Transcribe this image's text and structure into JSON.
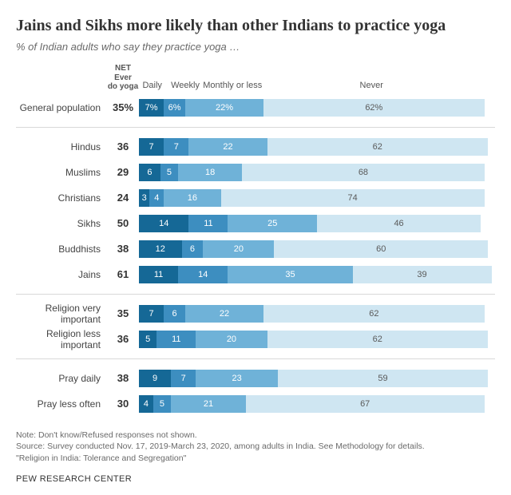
{
  "title": "Jains and Sikhs more likely than other Indians to practice yoga",
  "subtitle": "% of Indian adults who say they practice yoga …",
  "net_header_line1": "NET Ever",
  "net_header_line2": "do yoga",
  "segment_labels": [
    "Daily",
    "Weekly",
    "Monthly or less",
    "Never"
  ],
  "first_row_pct_suffix": "%",
  "colors": {
    "daily": "#156896",
    "weekly": "#3d8ec0",
    "monthly": "#6fb2d8",
    "never": "#cfe6f2",
    "background": "#ffffff",
    "grid": "#d9d9d9",
    "text_dark": "#333333",
    "text_light_on_bar": "#5a5a5a"
  },
  "label_positions_pct": {
    "daily": 1,
    "weekly": 9,
    "monthly": 18,
    "never": 62
  },
  "bar_full_width_pct": 100,
  "groups": [
    {
      "rows": [
        {
          "label": "General population",
          "net": "35",
          "daily": 7,
          "weekly": 6,
          "monthly": 22,
          "never": 62,
          "show_pct": true
        }
      ]
    },
    {
      "rows": [
        {
          "label": "Hindus",
          "net": "36",
          "daily": 7,
          "weekly": 7,
          "monthly": 22,
          "never": 62
        },
        {
          "label": "Muslims",
          "net": "29",
          "daily": 6,
          "weekly": 5,
          "monthly": 18,
          "never": 68
        },
        {
          "label": "Christians",
          "net": "24",
          "daily": 3,
          "weekly": 4,
          "monthly": 16,
          "never": 74
        },
        {
          "label": "Sikhs",
          "net": "50",
          "daily": 14,
          "weekly": 11,
          "monthly": 25,
          "never": 46
        },
        {
          "label": "Buddhists",
          "net": "38",
          "daily": 12,
          "weekly": 6,
          "monthly": 20,
          "never": 60
        },
        {
          "label": "Jains",
          "net": "61",
          "daily": 11,
          "weekly": 14,
          "monthly": 35,
          "never": 39
        }
      ]
    },
    {
      "rows": [
        {
          "label": "Religion very important",
          "net": "35",
          "daily": 7,
          "weekly": 6,
          "monthly": 22,
          "never": 62
        },
        {
          "label": "Religion less important",
          "net": "36",
          "daily": 5,
          "weekly": 11,
          "monthly": 20,
          "never": 62
        }
      ]
    },
    {
      "rows": [
        {
          "label": "Pray daily",
          "net": "38",
          "daily": 9,
          "weekly": 7,
          "monthly": 23,
          "never": 59
        },
        {
          "label": "Pray less often",
          "net": "30",
          "daily": 4,
          "weekly": 5,
          "monthly": 21,
          "never": 67
        }
      ]
    }
  ],
  "note_line1": "Note: Don't know/Refused responses not shown.",
  "note_line2": "Source: Survey conducted Nov. 17, 2019-March 23, 2020, among adults in India. See Methodology for details.",
  "note_line3": "\"Religion in India: Tolerance and Segregation\"",
  "footer": "PEW RESEARCH CENTER"
}
